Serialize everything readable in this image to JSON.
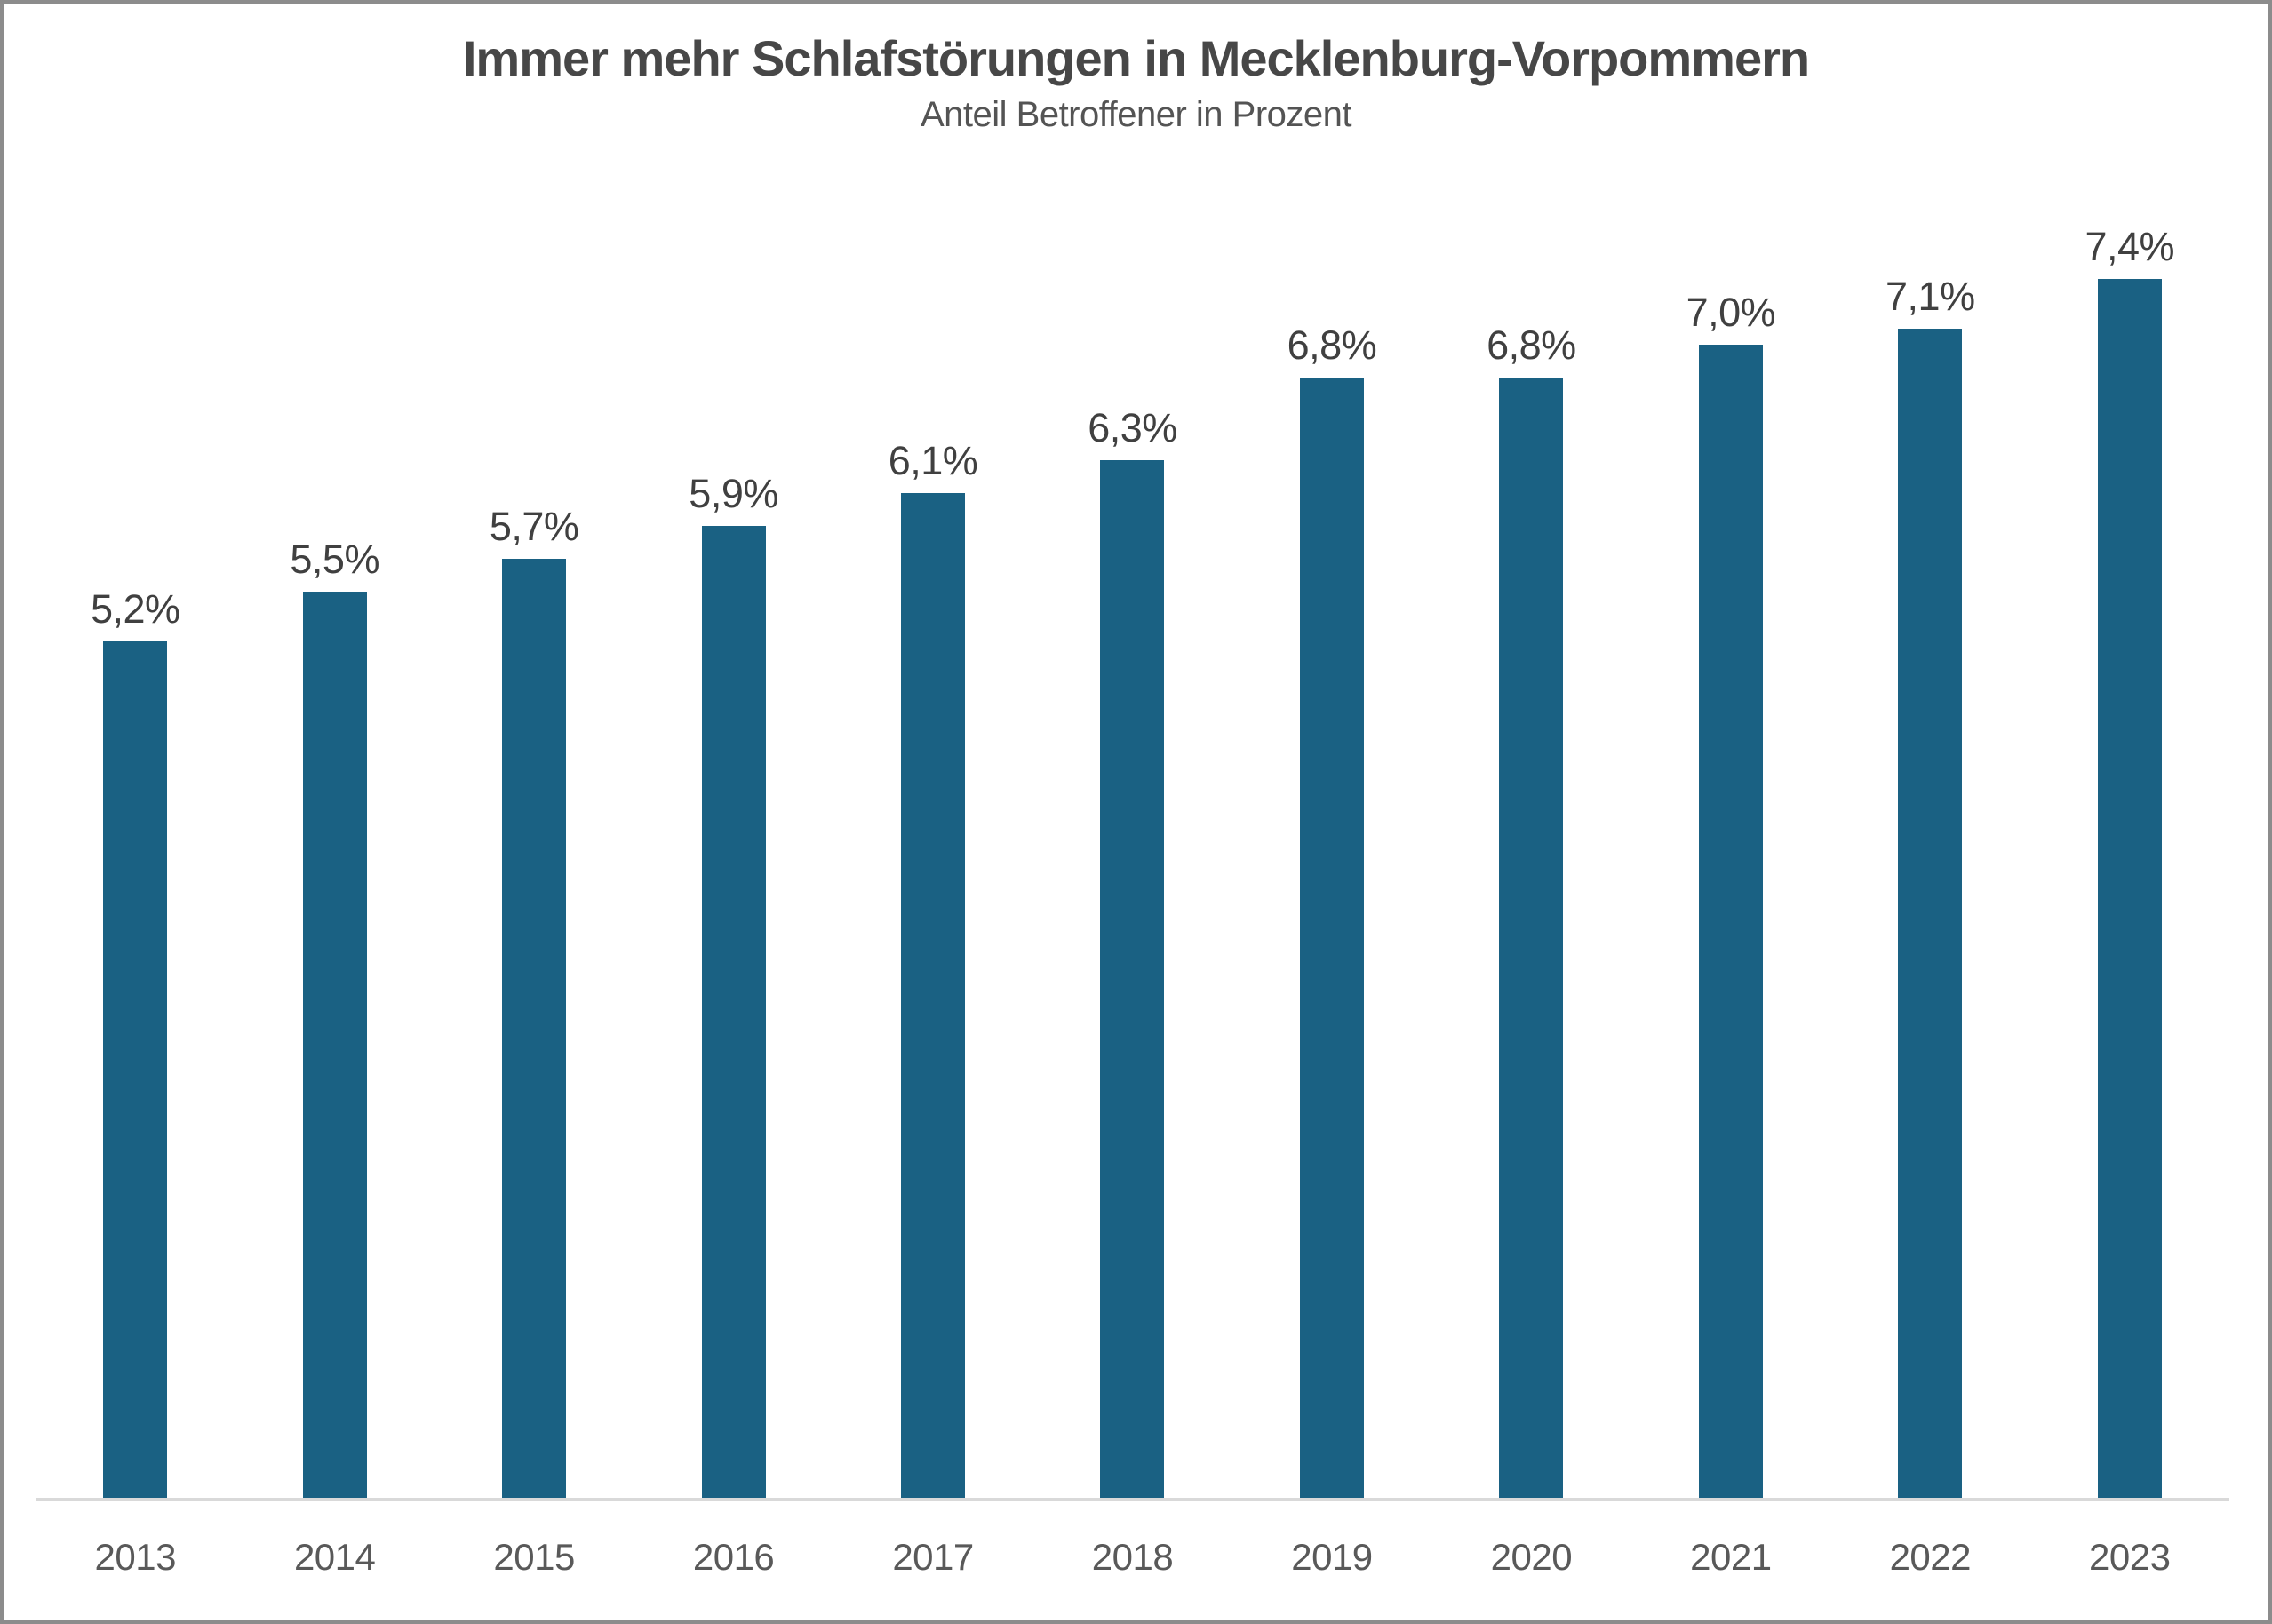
{
  "window": {
    "background": "#FFFFFF",
    "border_color": "#8C8C8C"
  },
  "chart_data": {
    "type": "bar",
    "title": "Immer mehr Schlafstörungen in Mecklenburg-Vorpommern",
    "subtitle": "Anteil Betroffener in Prozent",
    "categories": [
      "2013",
      "2014",
      "2015",
      "2016",
      "2017",
      "2018",
      "2019",
      "2020",
      "2021",
      "2022",
      "2023"
    ],
    "values": [
      5.2,
      5.5,
      5.7,
      5.9,
      6.1,
      6.3,
      6.8,
      6.8,
      7.0,
      7.1,
      7.4
    ],
    "value_labels": [
      "5,2%",
      "5,5%",
      "5,7%",
      "5,9%",
      "6,1%",
      "6,3%",
      "6,8%",
      "6,8%",
      "7,0%",
      "7,1%",
      "7,4%"
    ],
    "xlabel": "",
    "ylabel": "",
    "ylim": [
      0,
      7.4
    ],
    "grid": false,
    "legend": false,
    "colors": {
      "bar": "#1A6183",
      "axis_line": "#D9D9D9",
      "title": "#474747",
      "subtitle": "#545454",
      "value_label": "#404040",
      "tick_label": "#595959"
    }
  }
}
